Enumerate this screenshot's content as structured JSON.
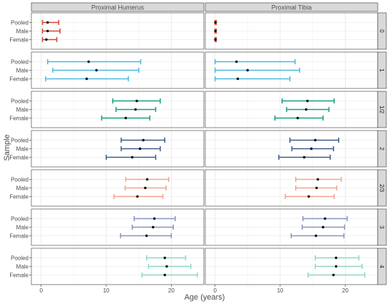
{
  "chart_data": {
    "type": "interval",
    "title": "",
    "xlabel": "Age (years)",
    "ylabel": "Sample",
    "xlim": [
      -1.5,
      25.0
    ],
    "x_ticks": [
      0,
      10,
      20
    ],
    "grid": true,
    "columns": [
      "Proximal Humerus",
      "Proximal Tibia"
    ],
    "row_categories": [
      "Pooled",
      "Male",
      "Female"
    ],
    "panels": [
      {
        "stage": "0",
        "color": "#d6452e",
        "humerus": [
          [
            0.2,
            1.0,
            2.7
          ],
          [
            0.2,
            1.0,
            2.9
          ],
          [
            0.2,
            0.8,
            2.4
          ]
        ],
        "tibia": [
          [
            0.0,
            0.05,
            0.2
          ],
          [
            0.0,
            0.05,
            0.2
          ],
          [
            0.0,
            0.05,
            0.2
          ]
        ]
      },
      {
        "stage": "1",
        "color": "#4cb8db",
        "humerus": [
          [
            1.0,
            7.3,
            15.3
          ],
          [
            1.8,
            8.5,
            15.0
          ],
          [
            0.7,
            7.0,
            13.4
          ]
        ],
        "tibia": [
          [
            0.0,
            3.3,
            12.3
          ],
          [
            0.0,
            5.0,
            13.0
          ],
          [
            0.0,
            3.5,
            11.5
          ]
        ]
      },
      {
        "stage": "1/2",
        "color": "#159e80",
        "humerus": [
          [
            11.0,
            14.7,
            18.3
          ],
          [
            11.5,
            14.5,
            17.6
          ],
          [
            9.3,
            13.0,
            16.7
          ]
        ],
        "tibia": [
          [
            10.3,
            14.2,
            18.3
          ],
          [
            11.0,
            14.0,
            17.5
          ],
          [
            9.2,
            12.7,
            16.6
          ]
        ]
      },
      {
        "stage": "2",
        "color": "#3d5a8a",
        "humerus": [
          [
            12.3,
            15.7,
            19.0
          ],
          [
            12.3,
            15.2,
            18.3
          ],
          [
            10.0,
            14.0,
            17.6
          ]
        ],
        "tibia": [
          [
            11.5,
            15.4,
            19.0
          ],
          [
            11.8,
            14.8,
            18.2
          ],
          [
            9.8,
            13.7,
            17.7
          ]
        ]
      },
      {
        "stage": "2/3",
        "color": "#f0a48c",
        "humerus": [
          [
            13.0,
            16.3,
            19.6
          ],
          [
            12.9,
            16.0,
            19.2
          ],
          [
            11.2,
            14.8,
            18.7
          ]
        ],
        "tibia": [
          [
            12.4,
            15.8,
            19.4
          ],
          [
            12.4,
            15.6,
            18.7
          ],
          [
            10.8,
            14.4,
            18.3
          ]
        ]
      },
      {
        "stage": "3",
        "color": "#8792ba",
        "humerus": [
          [
            14.3,
            17.4,
            20.6
          ],
          [
            14.0,
            17.2,
            20.3
          ],
          [
            12.2,
            16.2,
            20.0
          ]
        ],
        "tibia": [
          [
            13.5,
            16.9,
            20.3
          ],
          [
            13.4,
            16.6,
            19.9
          ],
          [
            11.7,
            15.5,
            19.8
          ]
        ]
      },
      {
        "stage": "4",
        "color": "#8fd6c6",
        "humerus": [
          [
            16.2,
            19.0,
            22.2
          ],
          [
            16.5,
            19.3,
            23.0
          ],
          [
            15.5,
            19.0,
            24.0
          ]
        ],
        "tibia": [
          [
            15.4,
            18.6,
            22.1
          ],
          [
            15.4,
            18.6,
            22.6
          ],
          [
            14.3,
            18.2,
            23.0
          ]
        ]
      }
    ]
  }
}
